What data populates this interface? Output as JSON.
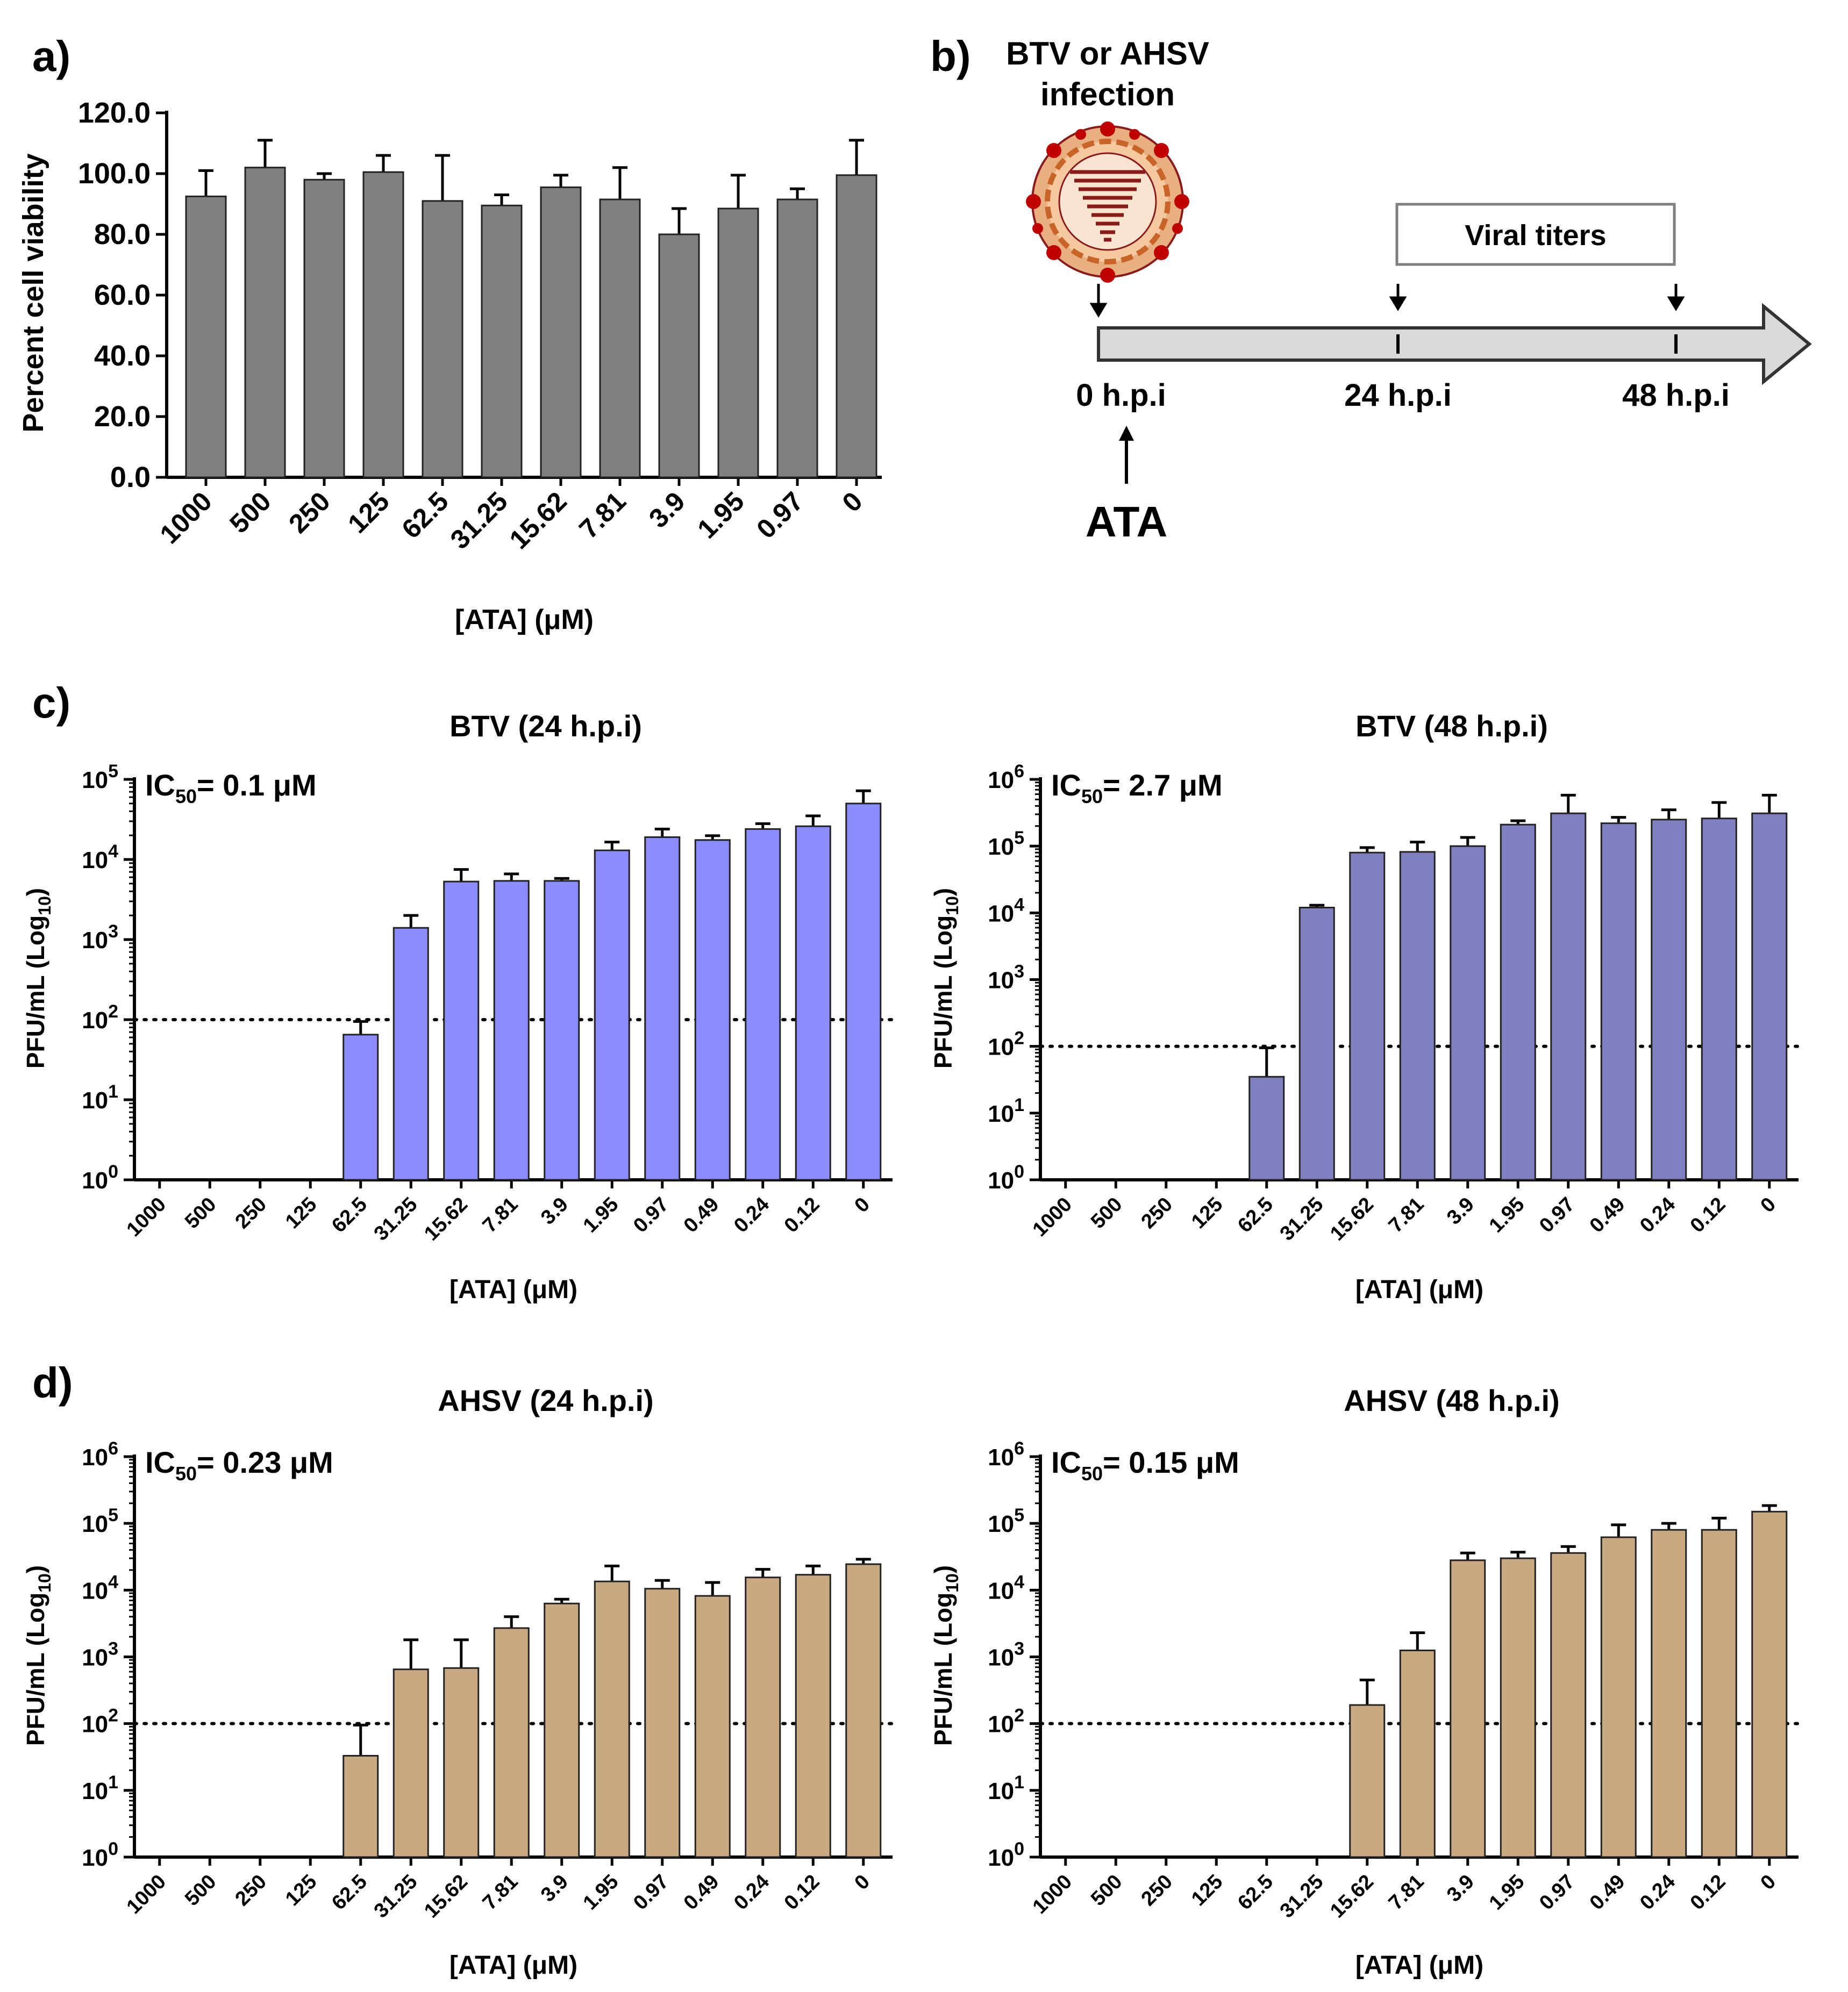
{
  "panel_labels": {
    "a": "a)",
    "b": "b)",
    "c": "c)",
    "d": "d)"
  },
  "colors": {
    "gray": "#808080",
    "btv24": "#8C8CFF",
    "btv48": "#8080C0",
    "ahsv": "#C9A982",
    "arrow_fill": "#D9D9D9",
    "virus_red": "#C00000",
    "virus_orange": "#F4A460",
    "virus_dark_red": "#8B1A1A"
  },
  "timeline": {
    "infection_line1": "BTV or AHSV",
    "infection_line2": "infection",
    "viral_titers": "Viral titers",
    "t0": "0 h.p.i",
    "t24": "24 h.p.i",
    "t48": "48 h.p.i",
    "treatment": "ATA",
    "virus_icon": "virus-icon"
  },
  "chart_data": [
    {
      "id": "a",
      "type": "bar",
      "title": "",
      "xlabel": "[ATA] (μM)",
      "ylabel": "Percent cell viability",
      "yscale": "linear",
      "ylim": [
        0,
        120
      ],
      "yticks": [
        "0.0",
        "20.0",
        "40.0",
        "60.0",
        "80.0",
        "100.0",
        "120.0"
      ],
      "categories": [
        "1000",
        "500",
        "250",
        "125",
        "62.5",
        "31.25",
        "15.62",
        "7.81",
        "3.9",
        "1.95",
        "0.97",
        "0"
      ],
      "values": [
        92.5,
        102,
        98,
        100.5,
        91,
        89.5,
        95.5,
        91.5,
        80,
        88.5,
        91.5,
        99.5
      ],
      "errors": [
        8.5,
        9,
        2,
        5.5,
        15,
        3.5,
        4,
        10.5,
        8.5,
        11,
        3.5,
        11.5
      ],
      "color": "gray"
    },
    {
      "id": "c1",
      "type": "bar",
      "title": "BTV (24 h.p.i)",
      "annotation": {
        "pre": "IC",
        "sub": "50",
        "post": "= 0.1 μM"
      },
      "xlabel": "[ATA] (μM)",
      "ylabel": {
        "pre": "PFU/mL (Log",
        "sub": "10",
        "post": ")"
      },
      "yscale": "log",
      "ylim_exp": [
        0,
        5
      ],
      "threshold": 100,
      "categories": [
        "1000",
        "500",
        "250",
        "125",
        "62.5",
        "31.25",
        "15.62",
        "7.81",
        "3.9",
        "1.95",
        "0.97",
        "0.49",
        "0.24",
        "0.12",
        "0"
      ],
      "values": [
        null,
        null,
        null,
        null,
        65,
        1400,
        5300,
        5400,
        5400,
        13000,
        19000,
        17500,
        24000,
        26000,
        50000
      ],
      "err_top": [
        null,
        null,
        null,
        null,
        95,
        2000,
        7500,
        6600,
        5800,
        16500,
        24000,
        19800,
        28000,
        35000,
        72000
      ],
      "color": "btv24"
    },
    {
      "id": "c2",
      "type": "bar",
      "title": "BTV (48 h.p.i)",
      "annotation": {
        "pre": "IC",
        "sub": "50",
        "post": "= 2.7 μM"
      },
      "xlabel": "[ATA] (μM)",
      "ylabel": {
        "pre": "PFU/mL (Log",
        "sub": "10",
        "post": ")"
      },
      "yscale": "log",
      "ylim_exp": [
        0,
        6
      ],
      "threshold": 100,
      "categories": [
        "1000",
        "500",
        "250",
        "125",
        "62.5",
        "31.25",
        "15.62",
        "7.81",
        "3.9",
        "1.95",
        "0.97",
        "0.49",
        "0.24",
        "0.12",
        "0"
      ],
      "values": [
        null,
        null,
        null,
        null,
        35,
        12000,
        80000,
        82000,
        100000,
        210000,
        310000,
        220000,
        250000,
        260000,
        310000
      ],
      "err_top": [
        null,
        null,
        null,
        null,
        95,
        13000,
        95000,
        115000,
        135000,
        240000,
        580000,
        270000,
        350000,
        450000,
        580000
      ],
      "color": "btv48"
    },
    {
      "id": "d1",
      "type": "bar",
      "title": "AHSV (24 h.p.i)",
      "annotation": {
        "pre": "IC",
        "sub": "50",
        "post": "= 0.23 μM"
      },
      "xlabel": "[ATA] (μM)",
      "ylabel": {
        "pre": "PFU/mL (Log",
        "sub": "10",
        "post": ")"
      },
      "yscale": "log",
      "ylim_exp": [
        0,
        6
      ],
      "threshold": 100,
      "categories": [
        "1000",
        "500",
        "250",
        "125",
        "62.5",
        "31.25",
        "15.62",
        "7.81",
        "3.9",
        "1.95",
        "0.97",
        "0.49",
        "0.24",
        "0.12",
        "0"
      ],
      "values": [
        null,
        null,
        null,
        null,
        33,
        650,
        680,
        2700,
        6300,
        13500,
        10500,
        8200,
        15500,
        17000,
        24500
      ],
      "err_top": [
        null,
        null,
        null,
        null,
        95,
        1800,
        1800,
        4000,
        7300,
        23000,
        14000,
        13000,
        20500,
        23000,
        29000
      ],
      "color": "ahsv"
    },
    {
      "id": "d2",
      "type": "bar",
      "title": "AHSV (48 h.p.i)",
      "annotation": {
        "pre": "IC",
        "sub": "50",
        "post": "= 0.15 μM"
      },
      "xlabel": "[ATA] (μM)",
      "ylabel": {
        "pre": "PFU/mL (Log",
        "sub": "10",
        "post": ")"
      },
      "yscale": "log",
      "ylim_exp": [
        0,
        6
      ],
      "threshold": 100,
      "categories": [
        "1000",
        "500",
        "250",
        "125",
        "62.5",
        "31.25",
        "15.62",
        "7.81",
        "3.9",
        "1.95",
        "0.97",
        "0.49",
        "0.24",
        "0.12",
        "0"
      ],
      "values": [
        null,
        null,
        null,
        null,
        null,
        null,
        190,
        1250,
        28000,
        30000,
        36000,
        62000,
        80000,
        80000,
        150000
      ],
      "err_top": [
        null,
        null,
        null,
        null,
        null,
        null,
        450,
        2300,
        36000,
        37000,
        45000,
        95000,
        100000,
        120000,
        185000
      ],
      "color": "ahsv"
    }
  ]
}
